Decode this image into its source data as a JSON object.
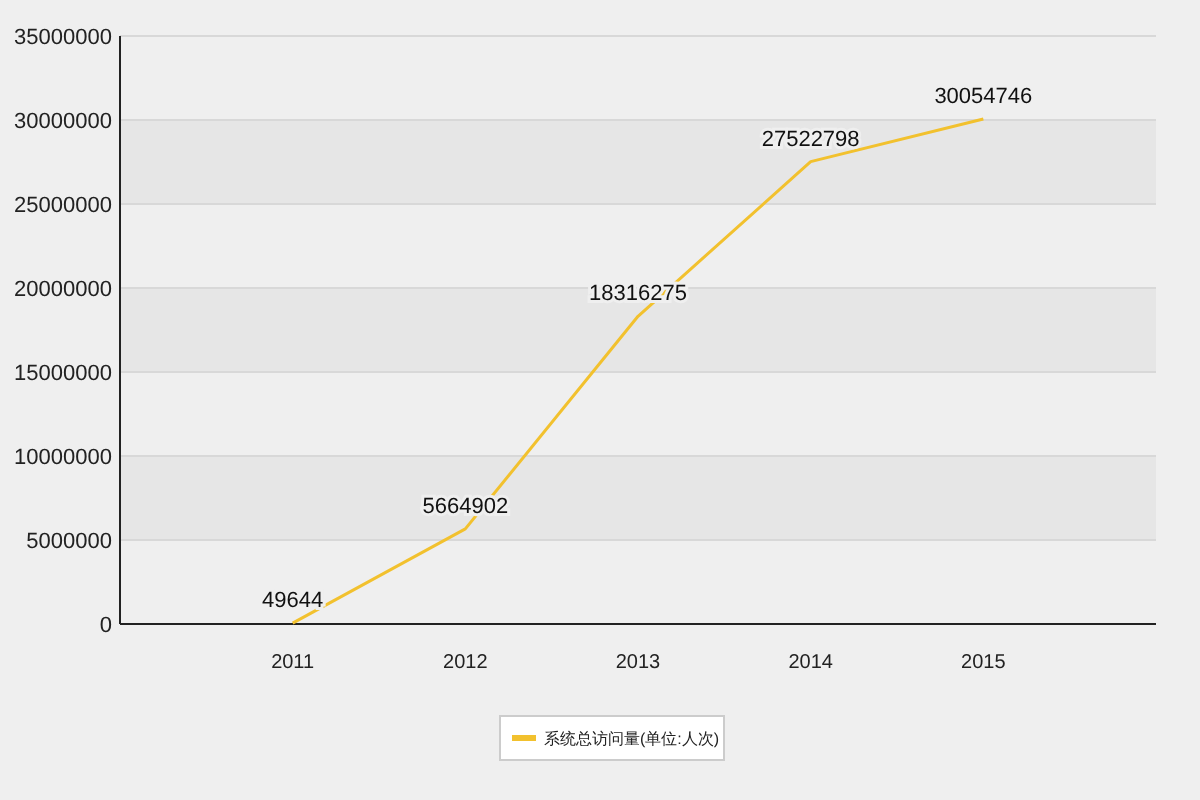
{
  "chart_data": {
    "type": "line",
    "categories": [
      "2011",
      "2012",
      "2013",
      "2014",
      "2015"
    ],
    "series": [
      {
        "name": "系统总访问量(单位:人次)",
        "color": "#f2c12e",
        "values": [
          49644,
          5664902,
          18316275,
          27522798,
          30054746
        ]
      }
    ],
    "ylim": [
      0,
      35000000
    ],
    "yticks": [
      0,
      5000000,
      10000000,
      15000000,
      20000000,
      25000000,
      30000000,
      35000000
    ],
    "grid": "y",
    "legend": "bottom",
    "data_labels": true,
    "marker": "none",
    "line_style": "solid"
  }
}
